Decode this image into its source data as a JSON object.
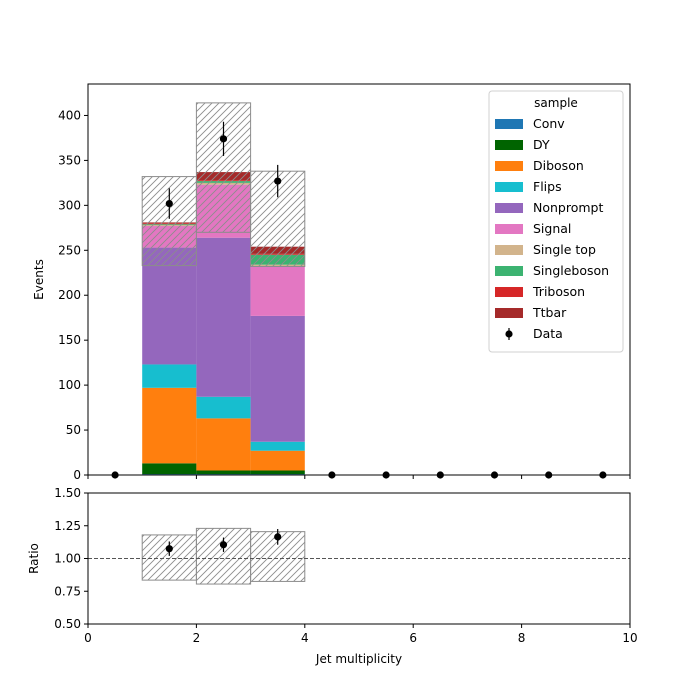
{
  "chart_data": {
    "type": "bar",
    "stacked": true,
    "xlabel": "Jet multiplicity",
    "ylabel": "Events",
    "ratio_ylabel": "Ratio",
    "xlim": [
      0,
      10
    ],
    "ylim": [
      0,
      435
    ],
    "ratio_ylim": [
      0.5,
      1.5
    ],
    "x_ticks": [
      "0",
      "2",
      "4",
      "6",
      "8",
      "10"
    ],
    "y_ticks": [
      "0",
      "50",
      "100",
      "150",
      "200",
      "250",
      "300",
      "350",
      "400"
    ],
    "ratio_ticks": [
      "0.50",
      "0.75",
      "1.00",
      "1.25",
      "1.50"
    ],
    "bin_edges": [
      0,
      1,
      2,
      3,
      4,
      5,
      6,
      7,
      8,
      9,
      10
    ],
    "legend": {
      "title": "sample",
      "position": "top-right"
    },
    "series": [
      {
        "name": "Conv",
        "color": "#1f77b4",
        "values": [
          0,
          1,
          1,
          1,
          0,
          0,
          0,
          0,
          0,
          0
        ]
      },
      {
        "name": "DY",
        "color": "#006400",
        "values": [
          0,
          12,
          4,
          4,
          0,
          0,
          0,
          0,
          0,
          0
        ]
      },
      {
        "name": "Diboson",
        "color": "#ff7f0e",
        "values": [
          0,
          84,
          58,
          22,
          0,
          0,
          0,
          0,
          0,
          0
        ]
      },
      {
        "name": "Flips",
        "color": "#17becf",
        "values": [
          0,
          26,
          24,
          10,
          0,
          0,
          0,
          0,
          0,
          0
        ]
      },
      {
        "name": "Nonprompt",
        "color": "#9467bd",
        "values": [
          0,
          130,
          177,
          140,
          0,
          0,
          0,
          0,
          0,
          0
        ]
      },
      {
        "name": "Signal",
        "color": "#e377c2",
        "values": [
          0,
          24,
          59,
          55,
          0,
          0,
          0,
          0,
          0,
          0
        ]
      },
      {
        "name": "Single top",
        "color": "#d2b48c",
        "values": [
          0,
          1,
          2,
          2,
          0,
          0,
          0,
          0,
          0,
          0
        ]
      },
      {
        "name": "Singleboson",
        "color": "#3cb371",
        "values": [
          0,
          1,
          2,
          11,
          0,
          0,
          0,
          0,
          0,
          0
        ]
      },
      {
        "name": "Triboson",
        "color": "#d62728",
        "values": [
          0,
          1,
          1,
          1,
          0,
          0,
          0,
          0,
          0,
          0
        ]
      },
      {
        "name": "Ttbar",
        "color": "#a52a2a",
        "values": [
          0,
          1,
          9,
          8,
          0,
          0,
          0,
          0,
          0,
          0
        ]
      }
    ],
    "uncertainty": {
      "up": [
        0,
        332,
        414,
        338,
        0,
        0,
        0,
        0,
        0,
        0
      ],
      "down": [
        0,
        233,
        270,
        232,
        0,
        0,
        0,
        0,
        0,
        0
      ]
    },
    "data": {
      "name": "Data",
      "x": [
        0.5,
        1.5,
        2.5,
        3.5,
        4.5,
        5.5,
        6.5,
        7.5,
        8.5,
        9.5
      ],
      "y": [
        0,
        302,
        374,
        327,
        0,
        0,
        0,
        0,
        0,
        0
      ],
      "yerr": [
        0,
        17,
        19,
        18,
        0,
        0,
        0,
        0,
        0,
        0
      ]
    },
    "ratio": {
      "x": [
        1.5,
        2.5,
        3.5
      ],
      "y": [
        1.075,
        1.105,
        1.165
      ],
      "yerr": [
        0.055,
        0.055,
        0.06
      ],
      "band_up": [
        0,
        1.18,
        1.23,
        1.205,
        0,
        0,
        0,
        0,
        0,
        0
      ],
      "band_down": [
        0,
        0.835,
        0.805,
        0.825,
        0,
        0,
        0,
        0,
        0,
        0
      ]
    }
  }
}
